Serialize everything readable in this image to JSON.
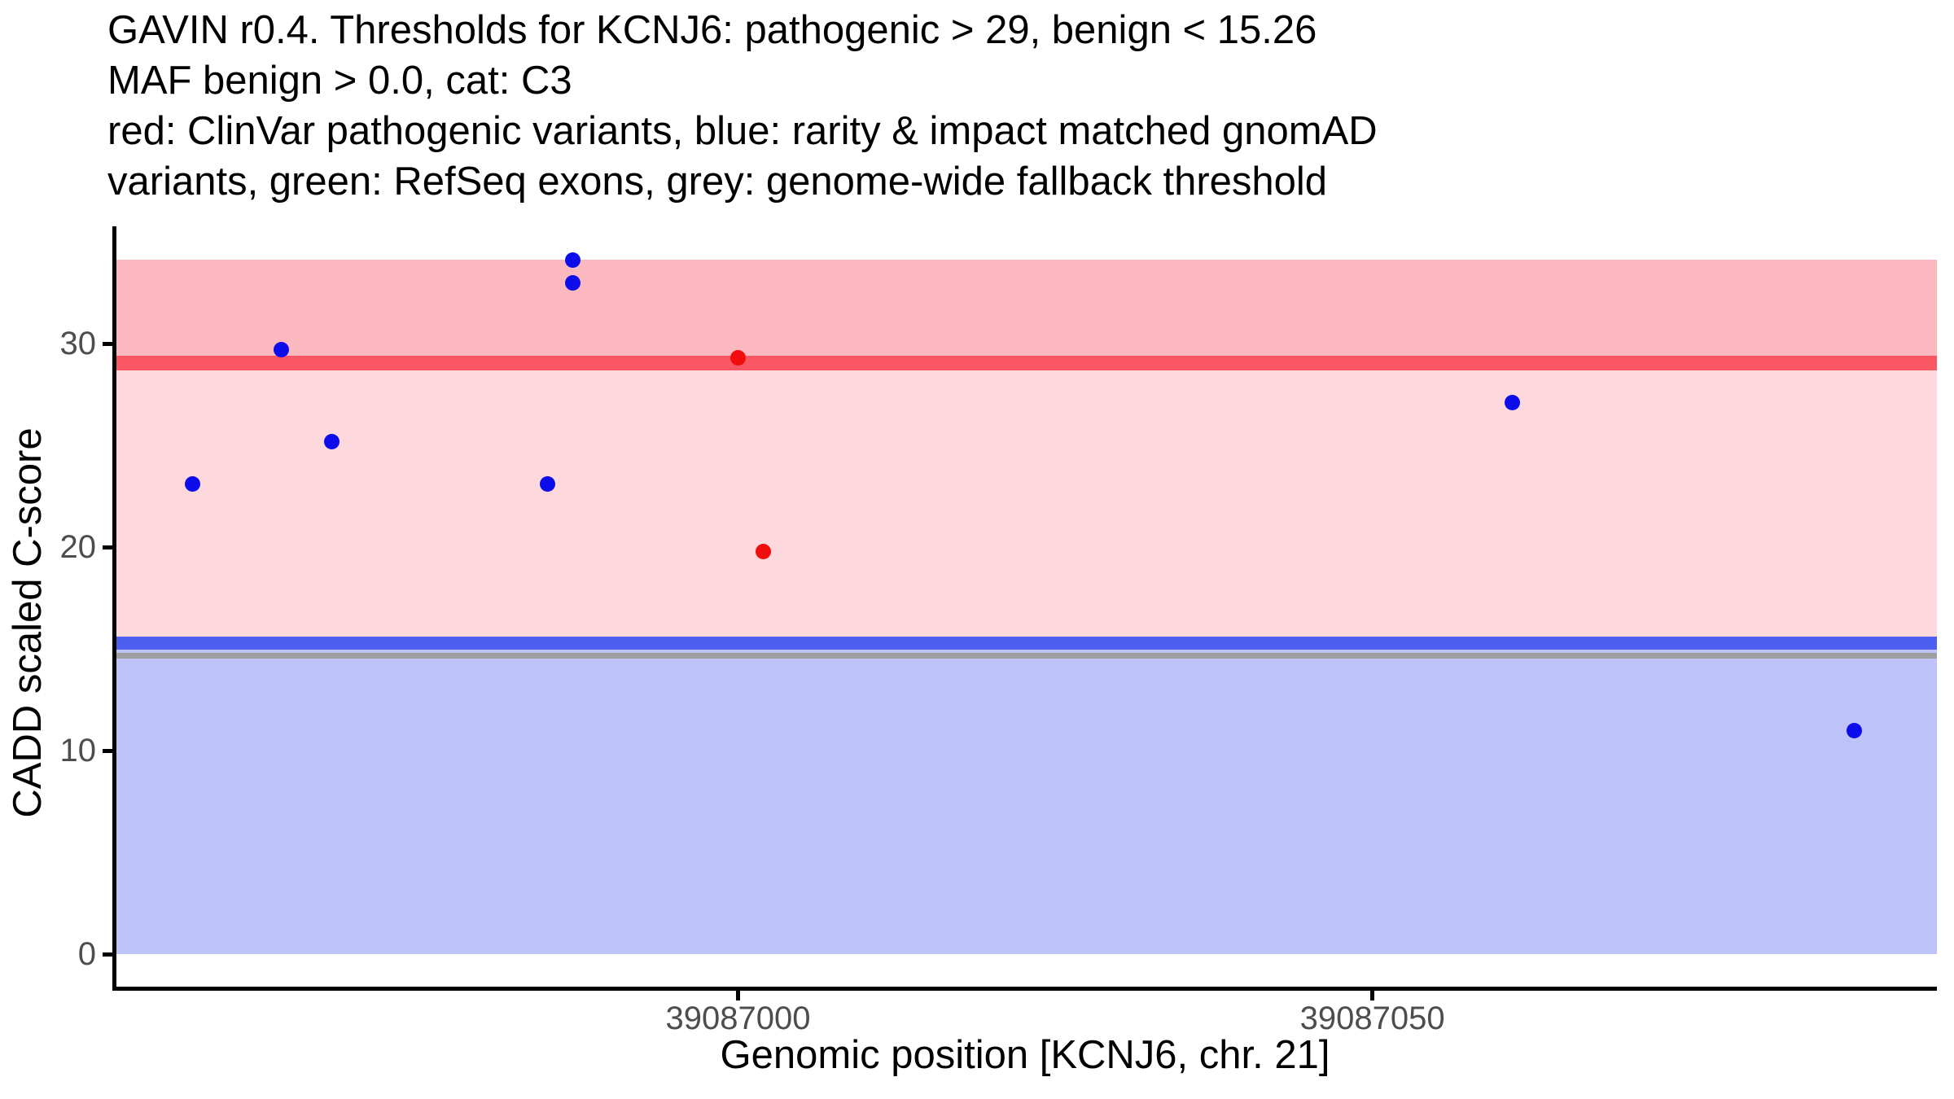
{
  "title": {
    "lines": [
      "GAVIN r0.4. Thresholds for KCNJ6: pathogenic > 29, benign < 15.26",
      "MAF benign > 0.0, cat: C3",
      "red: ClinVar pathogenic variants, blue: rarity & impact matched gnomAD",
      "variants, green: RefSeq exons, grey: genome-wide fallback threshold"
    ]
  },
  "x_axis": {
    "label": "Genomic position [KCNJ6, chr. 21]",
    "ticks": [
      {
        "value": 39087000,
        "label": "39087000"
      },
      {
        "value": 39087050,
        "label": "39087050"
      }
    ]
  },
  "y_axis": {
    "label": "CADD scaled C-score",
    "ticks": [
      {
        "value": 0,
        "label": "0"
      },
      {
        "value": 10,
        "label": "10"
      },
      {
        "value": 20,
        "label": "20"
      },
      {
        "value": 30,
        "label": "30"
      }
    ]
  },
  "colors": {
    "background": "#ffffff",
    "axis": "#000000",
    "tick_label": "#4d4d4d",
    "pathogenic_region": "#fbb8bf",
    "uncertain_region": "#fdd8dc",
    "benign_region": "#bdc3f8",
    "pathogenic_line": "#f95764",
    "benign_line": "#4c5fee",
    "fallback_line": "#9f9f9f",
    "clinvar_point": "#f10d0d",
    "gnomad_point": "#0d0deb"
  },
  "chart_data": {
    "type": "scatter",
    "title": "GAVIN r0.4. Thresholds for KCNJ6: pathogenic > 29, benign < 15.26 | MAF benign > 0.0, cat: C3",
    "xlabel": "Genomic position [KCNJ6, chr. 21]",
    "ylabel": "CADD scaled C-score",
    "xlim": [
      39086951,
      39087094.5
    ],
    "ylim": [
      -1.64,
      35.76
    ],
    "grid": false,
    "legend_position": "none",
    "point_radius_px": 9.5,
    "series": [
      {
        "name": "ClinVar pathogenic variants",
        "color": "#f10d0d",
        "points": [
          {
            "x": 39087000,
            "y": 29.3
          },
          {
            "x": 39087002,
            "y": 19.8
          }
        ]
      },
      {
        "name": "rarity & impact matched gnomAD variants",
        "color": "#0d0deb",
        "points": [
          {
            "x": 39086957,
            "y": 23.1
          },
          {
            "x": 39086964,
            "y": 29.7
          },
          {
            "x": 39086968,
            "y": 25.2
          },
          {
            "x": 39086985,
            "y": 23.1
          },
          {
            "x": 39086987,
            "y": 34.1
          },
          {
            "x": 39086987,
            "y": 33.0
          },
          {
            "x": 39087061,
            "y": 27.1
          },
          {
            "x": 39087088,
            "y": 11.0
          }
        ]
      }
    ],
    "thresholds": [
      {
        "name": "pathogenic threshold",
        "value": 29,
        "color": "#f95764"
      },
      {
        "name": "benign threshold",
        "value": 15.26,
        "color": "#4c5fee"
      },
      {
        "name": "genome-wide fallback threshold",
        "value": 14.7,
        "color": "#9f9f9f"
      }
    ],
    "bands": [
      {
        "name": "benign-region",
        "from": 0,
        "to": 14.96,
        "color": "#bdc3f8"
      },
      {
        "name": "fallback-threshold-line",
        "from": 14.52,
        "to": 14.8,
        "color": "#9f9f9f"
      },
      {
        "name": "uncertain-region",
        "from": 15.6,
        "to": 28.68,
        "color": "#fdd8dc"
      },
      {
        "name": "pathogenic-region",
        "from": 29.4,
        "to": 34.12,
        "color": "#fbb8bf"
      },
      {
        "name": "pathogenic-threshold-line",
        "from": 28.68,
        "to": 29.4,
        "color": "#f95764"
      },
      {
        "name": "benign-threshold-line",
        "from": 14.96,
        "to": 15.6,
        "color": "#4c5fee"
      }
    ]
  }
}
